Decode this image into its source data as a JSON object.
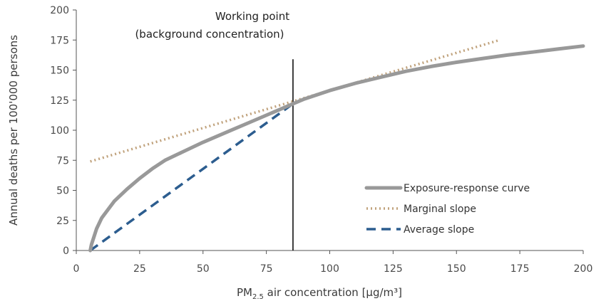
{
  "chart_data": {
    "type": "line",
    "xlabel": {
      "prefix": "PM",
      "subscript": "2.5",
      "suffix": " air concentration [μg/m³]"
    },
    "ylabel": "Annual deaths per 100'000 persons",
    "xlim": [
      0,
      200
    ],
    "ylim": [
      0,
      200
    ],
    "xticks": [
      "0",
      "25",
      "50",
      "75",
      "100",
      "125",
      "150",
      "175",
      "200"
    ],
    "yticks": [
      "0",
      "25",
      "50",
      "75",
      "100",
      "125",
      "150",
      "175",
      "200"
    ],
    "grid": false,
    "legend_position": "bottom-right",
    "annotation": {
      "lines": [
        "Working point",
        "(background concentration)"
      ],
      "x": 85.5,
      "y_range": [
        0,
        159
      ]
    },
    "series": [
      {
        "name": "Exposure-response curve",
        "style": "solid",
        "color": "#999999",
        "x": [
          5.5,
          6,
          8,
          10,
          15,
          20,
          25,
          30,
          35,
          40,
          50,
          60,
          70,
          80,
          85.5,
          90,
          100,
          110,
          120,
          130,
          140,
          150,
          160,
          170,
          180,
          190,
          200
        ],
        "y": [
          0,
          5,
          18,
          27,
          41,
          51,
          60,
          68,
          75,
          80,
          90,
          99,
          108,
          117,
          122,
          126,
          133,
          139,
          144,
          149,
          153,
          156.5,
          159.5,
          162.5,
          165,
          167.5,
          170
        ]
      },
      {
        "name": "Marginal slope",
        "style": "dotted",
        "color": "#c0a27c",
        "x": [
          5.5,
          167
        ],
        "y": [
          74,
          175
        ]
      },
      {
        "name": "Average slope",
        "style": "dashed",
        "color": "#2c5d8f",
        "x": [
          5.5,
          85.5
        ],
        "y": [
          0,
          122
        ]
      }
    ]
  }
}
